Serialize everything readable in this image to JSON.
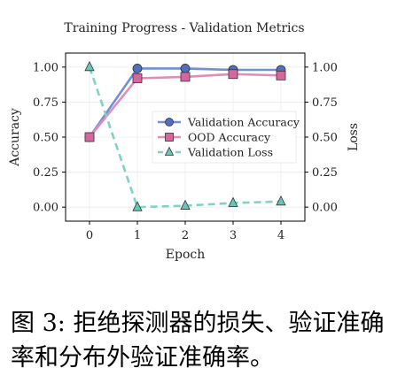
{
  "chart_data": {
    "type": "line",
    "title": "Training Progress - Validation Metrics",
    "xlabel": "Epoch",
    "ylabel": "Accuracy",
    "ylabel_right": "Loss",
    "x": [
      0,
      1,
      2,
      3,
      4
    ],
    "xlim": [
      -0.5,
      4.5
    ],
    "ylim": [
      -0.1,
      1.1
    ],
    "ylim_right": [
      -0.1,
      1.1
    ],
    "x_ticks": [
      "0",
      "1",
      "2",
      "3",
      "4"
    ],
    "y_ticks": [
      "0.00",
      "0.25",
      "0.50",
      "0.75",
      "1.00"
    ],
    "y_ticks_right": [
      "0.00",
      "0.25",
      "0.50",
      "0.75",
      "1.00"
    ],
    "grid": true,
    "legend_position": "center-right",
    "series": [
      {
        "name": "Validation Accuracy",
        "axis": "left",
        "values": [
          0.5,
          0.99,
          0.99,
          0.98,
          0.98
        ],
        "color": "#6f8fd8",
        "marker_color": "#4f6fc2",
        "marker": "circle",
        "line_style": "solid"
      },
      {
        "name": "OOD Accuracy",
        "axis": "left",
        "values": [
          0.5,
          0.92,
          0.93,
          0.95,
          0.94
        ],
        "color": "#e58cb6",
        "marker_color": "#d8669e",
        "marker": "square",
        "line_style": "solid"
      },
      {
        "name": "Validation Loss",
        "axis": "right",
        "values": [
          1.0,
          0.0,
          0.01,
          0.03,
          0.04
        ],
        "color": "#7fd3c6",
        "marker_color": "#66c7b8",
        "marker": "triangle",
        "line_style": "dashed"
      }
    ]
  },
  "caption": "图 3: 拒绝探测器的损失、验证准确率和分布外验证准确率。"
}
